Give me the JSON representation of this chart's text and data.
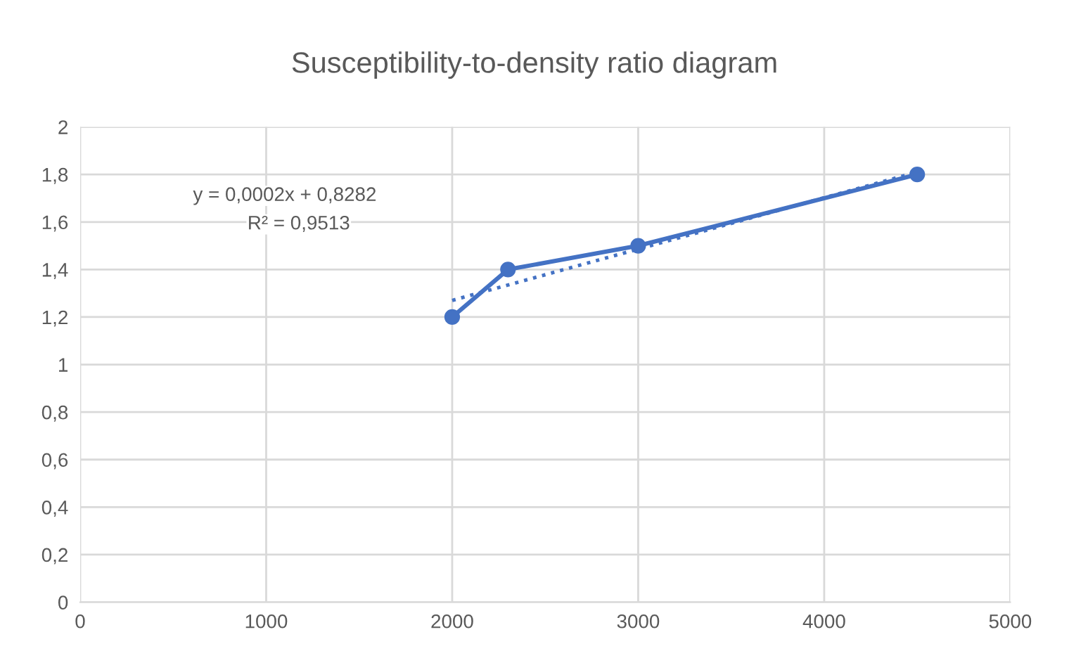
{
  "chart_data": {
    "type": "line",
    "title": "Susceptibility-to-density ratio diagram",
    "series": [
      {
        "color": "#4472c4",
        "x": [
          2000,
          2300,
          3000,
          4500
        ],
        "values": [
          1.2,
          1.4,
          1.5,
          1.8
        ],
        "marker": "circle",
        "line_style": "solid"
      },
      {
        "color": "#4472c4",
        "x": [
          2000,
          4500
        ],
        "values": [
          1.27,
          1.81
        ],
        "marker": "none",
        "line_style": "dotted"
      }
    ],
    "xlim": [
      0,
      5000
    ],
    "xticks": [
      0,
      1000,
      2000,
      3000,
      4000,
      5000
    ],
    "ylim": [
      0,
      2
    ],
    "yticks": [
      0,
      {
        "value": 0.2,
        "label": "0,2"
      },
      {
        "value": 0.4,
        "label": "0,4"
      },
      {
        "value": 0.6,
        "label": "0,6"
      },
      {
        "value": 0.8,
        "label": "0,8"
      },
      1,
      {
        "value": 1.2,
        "label": "1,2"
      },
      {
        "value": 1.4,
        "label": "1,4"
      },
      {
        "value": 1.6,
        "label": "1,6"
      },
      {
        "value": 1.8,
        "label": "1,8"
      },
      2
    ],
    "grid": true,
    "annotations": [
      "y = 0,0002x + 0,8282",
      "R² = 0,9513"
    ]
  }
}
